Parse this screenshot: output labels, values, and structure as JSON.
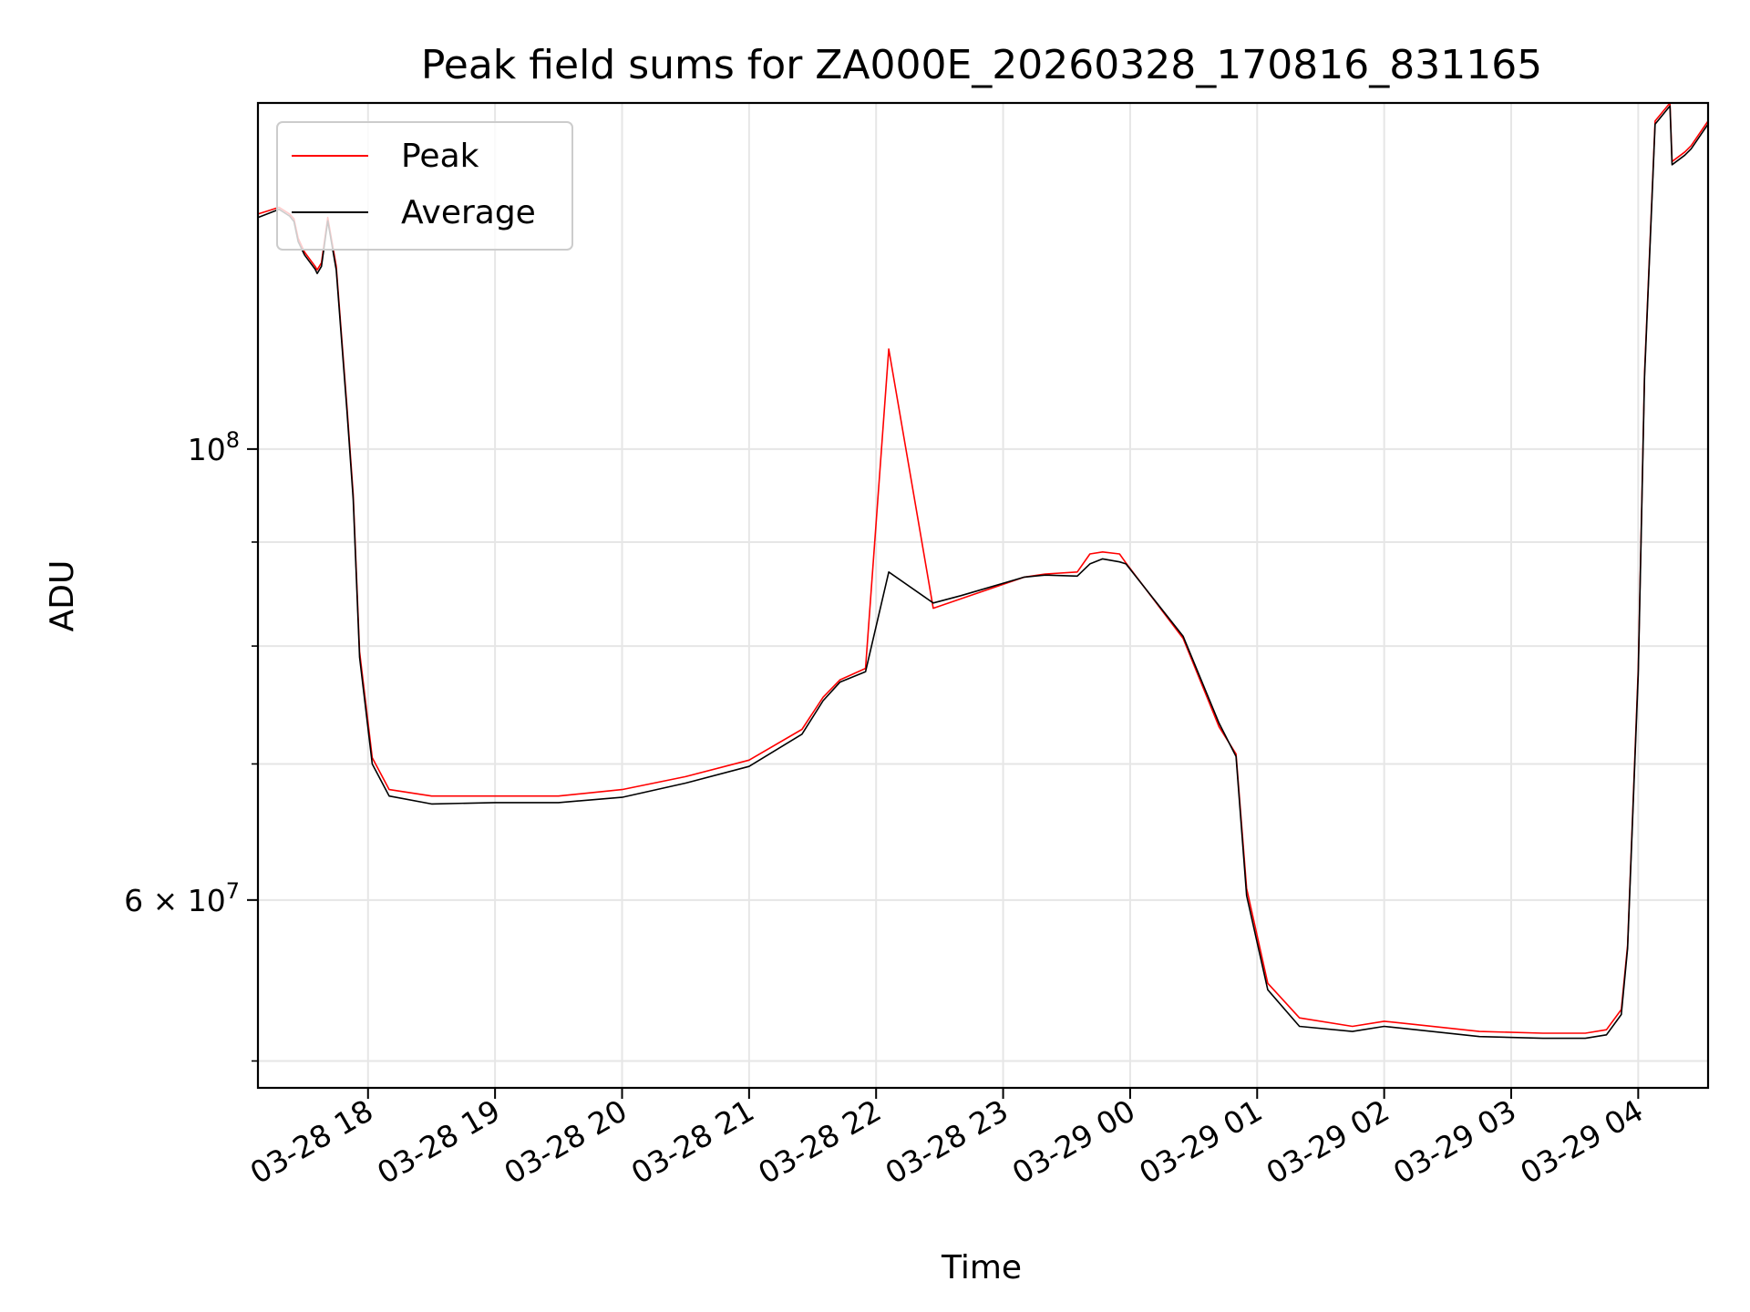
{
  "chart_data": {
    "type": "line",
    "title": "Peak field sums for ZA000E_20260328_170816_831165",
    "xlabel": "Time",
    "ylabel": "ADU",
    "yscale": "log",
    "grid": true,
    "legend_position": "upper-left",
    "x_range": [
      "2026-03-28 17:08",
      "2026-03-29 04:33"
    ],
    "ylim": [
      48500000,
      148000000
    ],
    "x_ticks": [
      "03-28 18",
      "03-28 19",
      "03-28 20",
      "03-28 21",
      "03-28 22",
      "03-28 23",
      "03-29 00",
      "03-29 01",
      "03-29 02",
      "03-29 03",
      "03-29 04"
    ],
    "y_ticks": [
      {
        "value": 100000000,
        "base": "10",
        "exp": "8",
        "coef": ""
      },
      {
        "value": 60000000,
        "base": "10",
        "exp": "7",
        "coef": "6 × "
      }
    ],
    "series": [
      {
        "name": "Peak",
        "color": "#ff0000",
        "x": [
          "2026-03-28 17:08",
          "2026-03-28 17:13",
          "2026-03-28 17:18",
          "2026-03-28 17:23",
          "2026-03-28 17:25",
          "2026-03-28 17:27",
          "2026-03-28 17:30",
          "2026-03-28 17:35",
          "2026-03-28 17:36",
          "2026-03-28 17:38",
          "2026-03-28 17:41",
          "2026-03-28 17:45",
          "2026-03-28 17:50",
          "2026-03-28 17:53",
          "2026-03-28 17:56",
          "2026-03-28 18:02",
          "2026-03-28 18:10",
          "2026-03-28 18:30",
          "2026-03-28 19:00",
          "2026-03-28 19:30",
          "2026-03-28 20:00",
          "2026-03-28 20:30",
          "2026-03-28 21:00",
          "2026-03-28 21:25",
          "2026-03-28 21:35",
          "2026-03-28 21:43",
          "2026-03-28 21:55",
          "2026-03-28 22:06",
          "2026-03-28 22:27",
          "2026-03-28 22:40",
          "2026-03-28 23:10",
          "2026-03-28 23:20",
          "2026-03-28 23:35",
          "2026-03-28 23:41",
          "2026-03-28 23:47",
          "2026-03-28 23:55",
          "2026-03-28 23:58",
          "2026-03-29 00:25",
          "2026-03-29 00:42",
          "2026-03-29 00:50",
          "2026-03-29 00:55",
          "2026-03-29 01:05",
          "2026-03-29 01:20",
          "2026-03-29 01:45",
          "2026-03-29 02:00",
          "2026-03-29 02:15",
          "2026-03-29 02:45",
          "2026-03-29 03:15",
          "2026-03-29 03:35",
          "2026-03-29 03:45",
          "2026-03-29 03:52",
          "2026-03-29 03:55",
          "2026-03-29 04:00",
          "2026-03-29 04:03",
          "2026-03-29 04:08",
          "2026-03-29 04:15",
          "2026-03-29 04:16",
          "2026-03-29 04:22",
          "2026-03-29 04:25",
          "2026-03-29 04:31",
          "2026-03-29 04:33"
        ],
        "y": [
          130500000,
          131000000,
          131500000,
          130500000,
          129800000,
          127000000,
          125000000,
          123000000,
          122500000,
          123500000,
          130000000,
          123000000,
          105000000,
          95000000,
          79500000,
          70500000,
          68000000,
          67500000,
          67500000,
          67500000,
          68000000,
          69000000,
          70300000,
          72800000,
          75500000,
          77000000,
          78000000,
          112000000,
          83500000,
          84400000,
          86500000,
          86800000,
          87000000,
          88800000,
          89000000,
          88800000,
          87900000,
          80700000,
          73000000,
          70800000,
          60800000,
          54600000,
          52500000,
          52000000,
          52300000,
          52100000,
          51700000,
          51600000,
          51600000,
          51800000,
          53000000,
          57000000,
          78000000,
          109000000,
          145000000,
          148000000,
          138500000,
          140000000,
          141000000,
          144000000,
          145000000
        ]
      },
      {
        "name": "Average",
        "color": "#000000",
        "x": [
          "2026-03-28 17:08",
          "2026-03-28 17:13",
          "2026-03-28 17:18",
          "2026-03-28 17:23",
          "2026-03-28 17:25",
          "2026-03-28 17:27",
          "2026-03-28 17:30",
          "2026-03-28 17:35",
          "2026-03-28 17:36",
          "2026-03-28 17:38",
          "2026-03-28 17:41",
          "2026-03-28 17:45",
          "2026-03-28 17:50",
          "2026-03-28 17:53",
          "2026-03-28 17:56",
          "2026-03-28 18:02",
          "2026-03-28 18:10",
          "2026-03-28 18:30",
          "2026-03-28 19:00",
          "2026-03-28 19:30",
          "2026-03-28 20:00",
          "2026-03-28 20:30",
          "2026-03-28 21:00",
          "2026-03-28 21:25",
          "2026-03-28 21:35",
          "2026-03-28 21:43",
          "2026-03-28 21:55",
          "2026-03-28 22:06",
          "2026-03-28 22:27",
          "2026-03-28 22:40",
          "2026-03-28 23:10",
          "2026-03-28 23:20",
          "2026-03-28 23:35",
          "2026-03-28 23:41",
          "2026-03-28 23:47",
          "2026-03-28 23:55",
          "2026-03-28 23:58",
          "2026-03-29 00:25",
          "2026-03-29 00:42",
          "2026-03-29 00:50",
          "2026-03-29 00:55",
          "2026-03-29 01:05",
          "2026-03-29 01:20",
          "2026-03-29 01:45",
          "2026-03-29 02:00",
          "2026-03-29 02:15",
          "2026-03-29 02:45",
          "2026-03-29 03:15",
          "2026-03-29 03:35",
          "2026-03-29 03:45",
          "2026-03-29 03:52",
          "2026-03-29 03:55",
          "2026-03-29 04:00",
          "2026-03-29 04:03",
          "2026-03-29 04:08",
          "2026-03-29 04:15",
          "2026-03-29 04:16",
          "2026-03-29 04:22",
          "2026-03-29 04:25",
          "2026-03-29 04:31",
          "2026-03-29 04:33"
        ],
        "y": [
          130000000,
          130600000,
          131200000,
          130200000,
          129400000,
          126500000,
          124600000,
          122600000,
          122000000,
          123000000,
          129500000,
          122500000,
          104500000,
          94500000,
          79000000,
          70000000,
          67500000,
          66900000,
          67000000,
          67000000,
          67400000,
          68500000,
          69800000,
          72400000,
          75200000,
          76800000,
          77700000,
          87000000,
          84000000,
          84700000,
          86500000,
          86700000,
          86600000,
          87800000,
          88300000,
          88000000,
          87800000,
          80900000,
          73300000,
          70600000,
          60300000,
          54200000,
          52000000,
          51700000,
          52000000,
          51800000,
          51400000,
          51300000,
          51300000,
          51500000,
          52700000,
          56800000,
          77500000,
          108500000,
          144500000,
          147500000,
          138000000,
          139500000,
          140500000,
          143500000,
          144500000
        ]
      }
    ]
  }
}
